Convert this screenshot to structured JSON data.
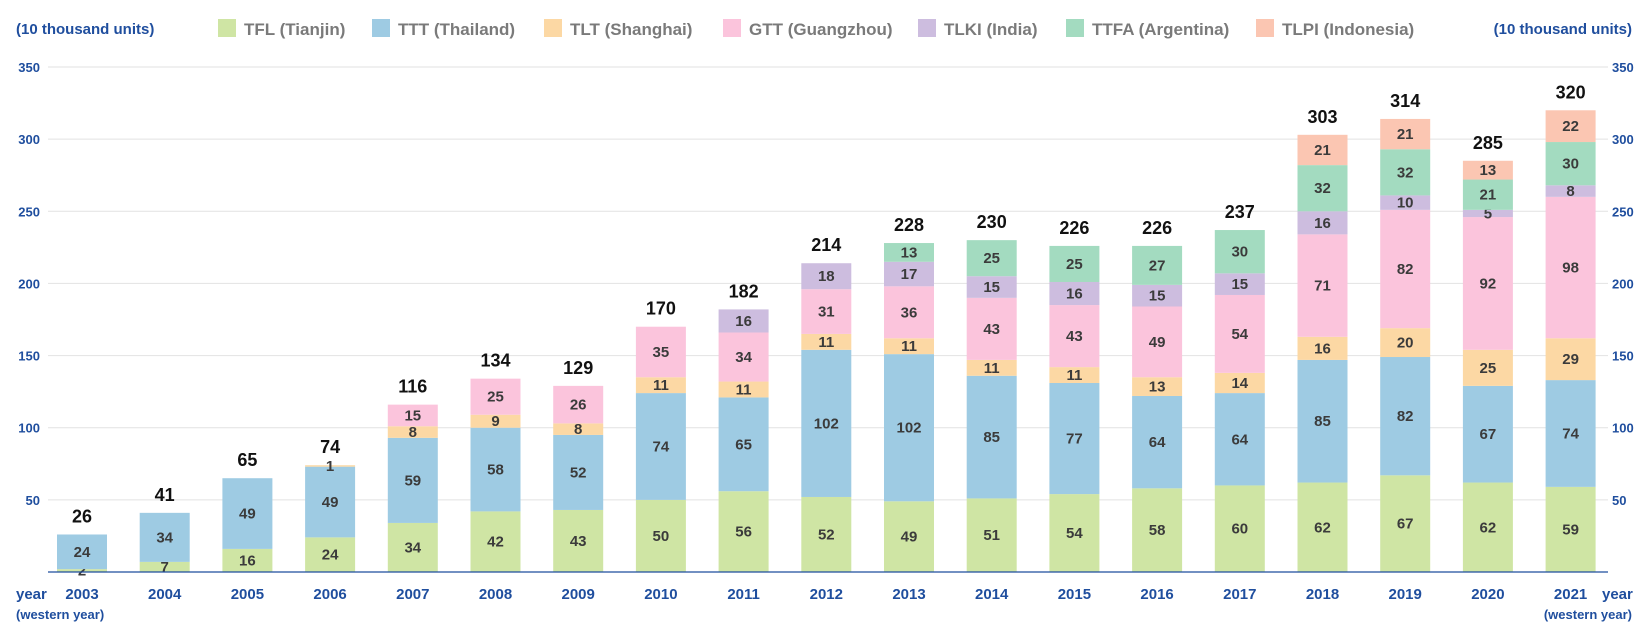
{
  "chart_data": {
    "type": "bar",
    "stacked": true,
    "y_unit_left": "(10 thousand units)",
    "y_unit_right": "(10 thousand units)",
    "x_label_left": "year",
    "x_label_left_sub": "(western year)",
    "x_label_right": "year",
    "x_label_right_sub": "(western year)",
    "ylim": [
      0,
      350
    ],
    "yticks": [
      50,
      100,
      150,
      200,
      250,
      300,
      350
    ],
    "grid": true,
    "legend_position": "top",
    "categories": [
      "2003",
      "2004",
      "2005",
      "2006",
      "2007",
      "2008",
      "2009",
      "2010",
      "2011",
      "2012",
      "2013",
      "2014",
      "2015",
      "2016",
      "2017",
      "2018",
      "2019",
      "2020",
      "2021"
    ],
    "totals": [
      26,
      41,
      65,
      74,
      116,
      134,
      129,
      170,
      182,
      214,
      228,
      230,
      226,
      226,
      237,
      303,
      314,
      285,
      320
    ],
    "series": [
      {
        "name": "TFL (Tianjin)",
        "color": "#cfe5a4",
        "values": [
          2,
          7,
          16,
          24,
          34,
          42,
          43,
          50,
          56,
          52,
          49,
          51,
          54,
          58,
          60,
          62,
          67,
          62,
          59
        ]
      },
      {
        "name": "TTT (Thailand)",
        "color": "#9ecbe3",
        "values": [
          24,
          34,
          49,
          49,
          59,
          58,
          52,
          74,
          65,
          102,
          102,
          85,
          77,
          64,
          64,
          85,
          82,
          67,
          74
        ]
      },
      {
        "name": "TLT (Shanghai)",
        "color": "#fcd8a4",
        "values": [
          null,
          null,
          null,
          1,
          8,
          9,
          8,
          11,
          11,
          11,
          11,
          11,
          11,
          13,
          14,
          16,
          20,
          25,
          29
        ]
      },
      {
        "name": "GTT (Guangzhou)",
        "color": "#fbc4dc",
        "values": [
          null,
          null,
          null,
          null,
          15,
          25,
          26,
          35,
          34,
          31,
          36,
          43,
          43,
          49,
          54,
          71,
          82,
          92,
          98
        ]
      },
      {
        "name": "TLKI (India)",
        "color": "#cdbddf",
        "values": [
          null,
          null,
          null,
          null,
          null,
          null,
          null,
          null,
          16,
          18,
          17,
          15,
          16,
          15,
          15,
          16,
          10,
          5,
          8
        ]
      },
      {
        "name": "TTFA (Argentina)",
        "color": "#a3dbc0",
        "values": [
          null,
          null,
          null,
          null,
          null,
          null,
          null,
          null,
          null,
          null,
          13,
          25,
          25,
          27,
          30,
          32,
          32,
          21,
          30
        ]
      },
      {
        "name": "TLPI (Indonesia)",
        "color": "#fbc6b2",
        "values": [
          null,
          null,
          null,
          null,
          null,
          null,
          null,
          null,
          null,
          null,
          null,
          null,
          null,
          null,
          null,
          21,
          21,
          13,
          22
        ]
      }
    ]
  }
}
